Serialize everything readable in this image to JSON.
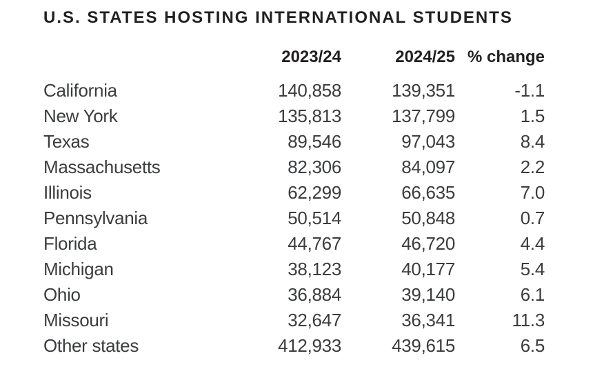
{
  "title": "U.S. STATES HOSTING INTERNATIONAL STUDENTS",
  "colors": {
    "background": "#ffffff",
    "title_text": "#221f20",
    "header_text": "#221f20",
    "body_text": "#3a3c3e"
  },
  "chart_data": {
    "type": "table",
    "title": "U.S. STATES HOSTING INTERNATIONAL STUDENTS",
    "columns": [
      "",
      "2023/24",
      "2024/25",
      "% change"
    ],
    "rows": [
      {
        "state": "California",
        "y2023_24": "140,858",
        "y2024_25": "139,351",
        "pct_change": "-1.1"
      },
      {
        "state": "New York",
        "y2023_24": "135,813",
        "y2024_25": "137,799",
        "pct_change": "1.5"
      },
      {
        "state": "Texas",
        "y2023_24": "89,546",
        "y2024_25": "97,043",
        "pct_change": "8.4"
      },
      {
        "state": "Massachusetts",
        "y2023_24": "82,306",
        "y2024_25": "84,097",
        "pct_change": "2.2"
      },
      {
        "state": "Illinois",
        "y2023_24": "62,299",
        "y2024_25": "66,635",
        "pct_change": "7.0"
      },
      {
        "state": "Pennsylvania",
        "y2023_24": "50,514",
        "y2024_25": "50,848",
        "pct_change": "0.7"
      },
      {
        "state": "Florida",
        "y2023_24": "44,767",
        "y2024_25": "46,720",
        "pct_change": "4.4"
      },
      {
        "state": "Michigan",
        "y2023_24": "38,123",
        "y2024_25": "40,177",
        "pct_change": "5.4"
      },
      {
        "state": "Ohio",
        "y2023_24": "36,884",
        "y2024_25": "39,140",
        "pct_change": "6.1"
      },
      {
        "state": "Missouri",
        "y2023_24": "32,647",
        "y2024_25": "36,341",
        "pct_change": "11.3"
      },
      {
        "state": "Other states",
        "y2023_24": "412,933",
        "y2024_25": "439,615",
        "pct_change": "6.5"
      }
    ]
  }
}
